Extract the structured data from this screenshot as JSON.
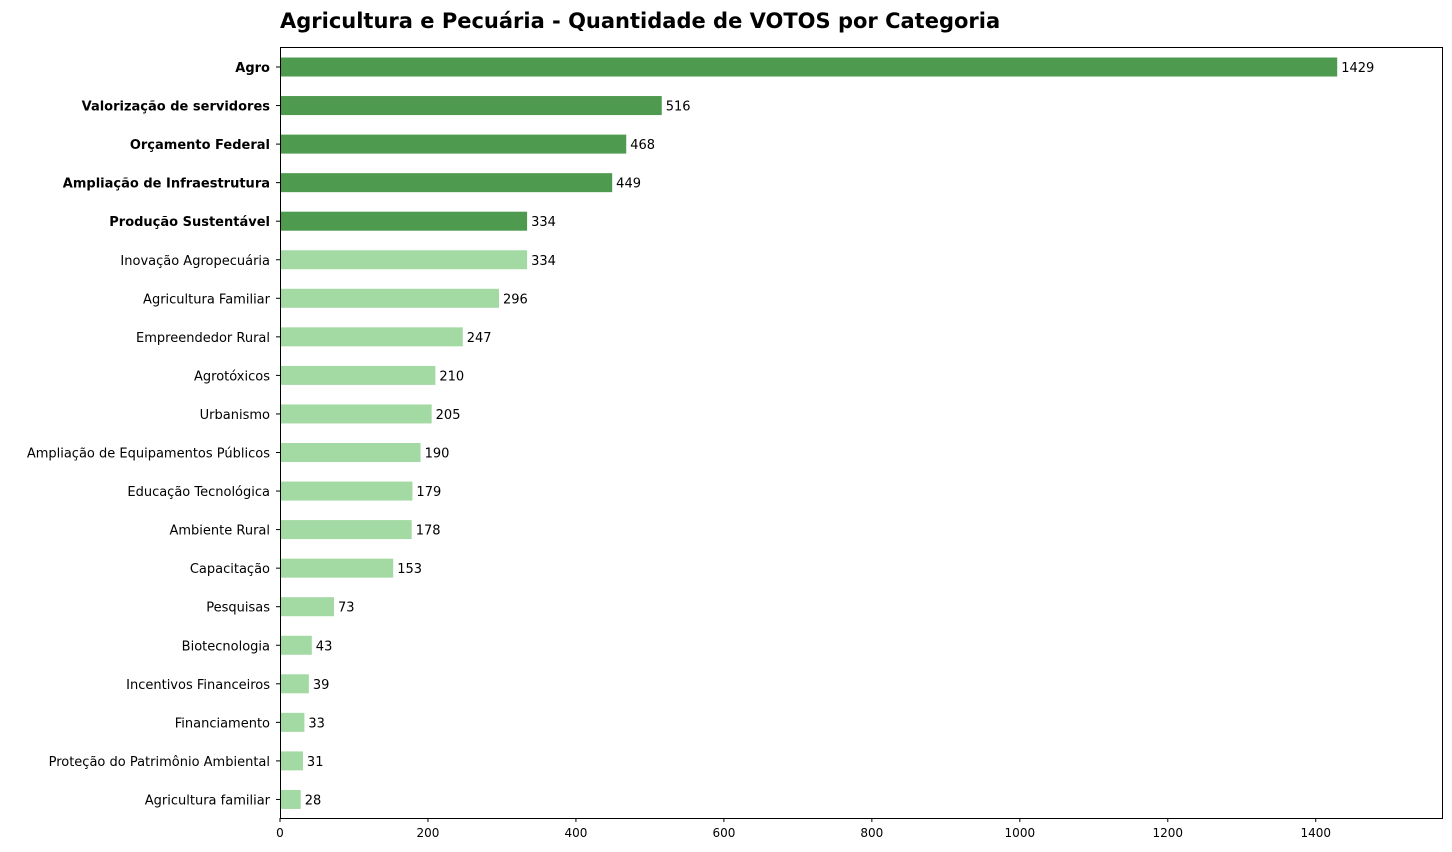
{
  "chart_data": {
    "type": "bar",
    "orientation": "horizontal",
    "title": "Agricultura e Pecuária - Quantidade de VOTOS por Categoria",
    "xlabel": "",
    "ylabel": "",
    "xlim": [
      0,
      1572
    ],
    "x_ticks": [
      0,
      200,
      400,
      600,
      800,
      1000,
      1200,
      1400
    ],
    "grid": false,
    "highlight_count": 5,
    "colors": {
      "highlight": "#4e9a4e",
      "normal": "#a3d9a3"
    },
    "categories": [
      "Agro",
      "Valorização de servidores",
      "Orçamento Federal",
      "Ampliação de Infraestrutura",
      "Produção Sustentável",
      "Inovação Agropecuária",
      "Agricultura Familiar",
      "Empreendedor Rural",
      "Agrotóxicos",
      "Urbanismo",
      "Ampliação de Equipamentos Públicos",
      "Educação Tecnológica",
      "Ambiente Rural",
      "Capacitação",
      "Pesquisas",
      "Biotecnologia",
      "Incentivos Financeiros",
      "Financiamento",
      "Proteção do Patrimônio Ambiental",
      "Agricultura familiar"
    ],
    "values": [
      1429,
      516,
      468,
      449,
      334,
      334,
      296,
      247,
      210,
      205,
      190,
      179,
      178,
      153,
      73,
      43,
      39,
      33,
      31,
      28
    ]
  }
}
